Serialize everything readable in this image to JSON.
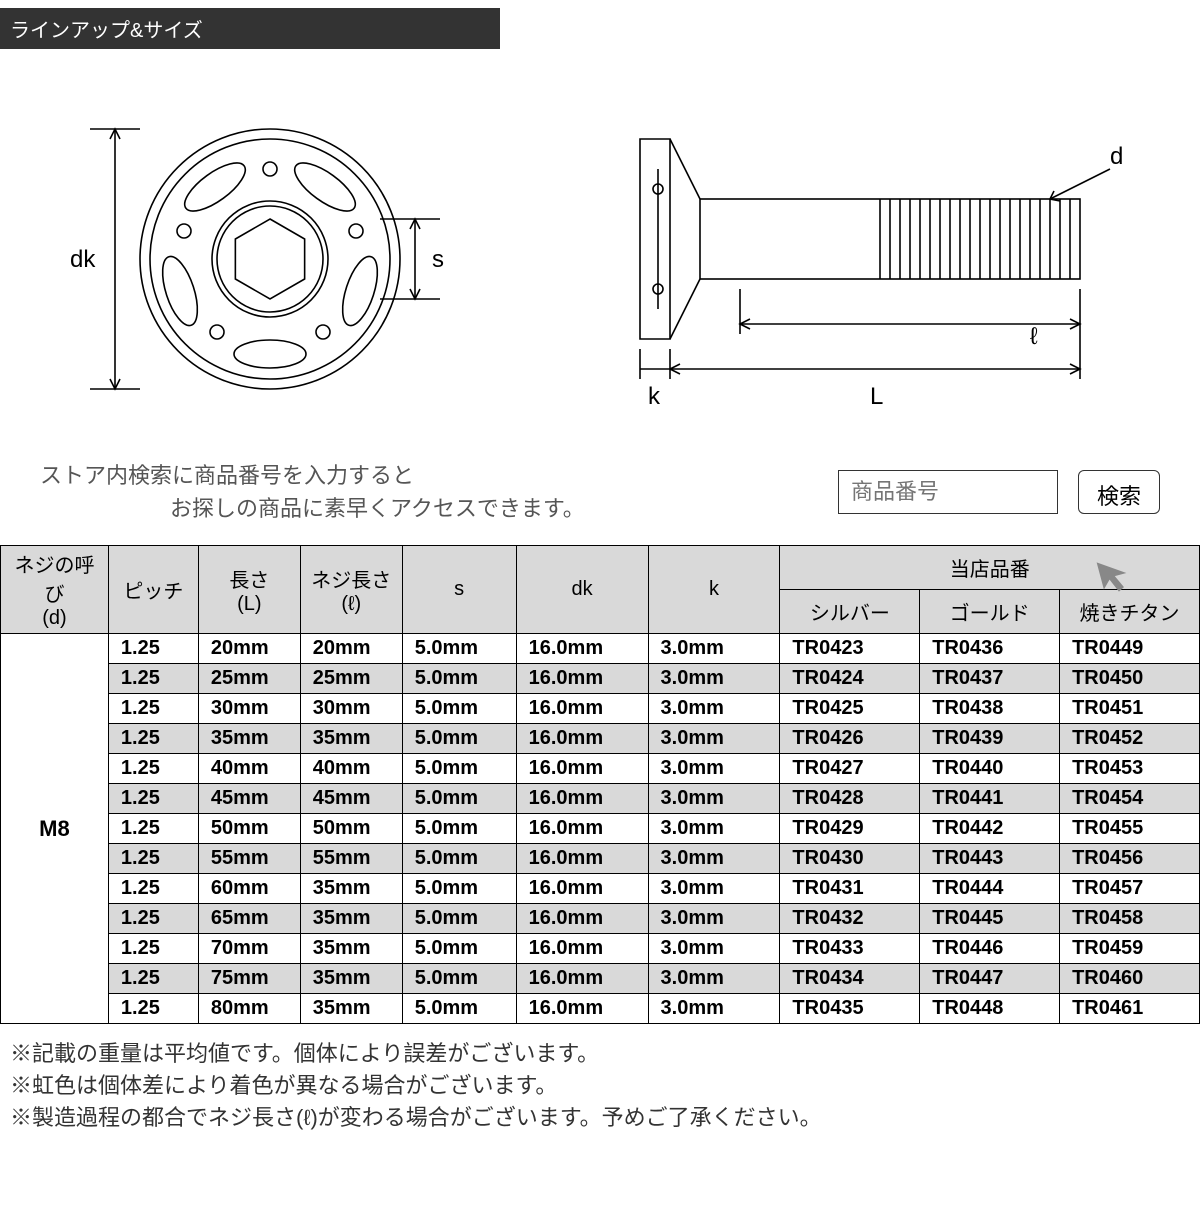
{
  "section_title": "ラインアップ&サイズ",
  "diagram": {
    "front": {
      "dk_label": "dk",
      "s_label": "s"
    },
    "side": {
      "d_label": "d",
      "k_label": "k",
      "L_label": "L",
      "l_label": "ℓ"
    },
    "stroke_color": "#000000",
    "line_width": 1.6
  },
  "search": {
    "hint_line1": "ストア内検索に商品番号を入力すると",
    "hint_line2": "お探しの商品に素早くアクセスできます。",
    "placeholder": "商品番号",
    "button_label": "検索"
  },
  "table": {
    "header_bg": "#d9d9d9",
    "cell_bg": "#ffffff",
    "shaded_bg": "#d9d9d9",
    "border_color": "#000000",
    "headers": {
      "d": "ネジの呼び\n(d)",
      "pitch": "ピッチ",
      "L": "長さ\n(L)",
      "l": "ネジ長さ\n(ℓ)",
      "s": "s",
      "dk": "dk",
      "k": "k",
      "group": "当店品番",
      "silver": "シルバー",
      "gold": "ゴールド",
      "titanium": "焼きチタン"
    },
    "thread_name": "M8",
    "rows": [
      {
        "shaded": false,
        "pitch": "1.25",
        "L": "20mm",
        "l": "20mm",
        "s": "5.0mm",
        "dk": "16.0mm",
        "k": "3.0mm",
        "silver": "TR0423",
        "gold": "TR0436",
        "titanium": "TR0449"
      },
      {
        "shaded": true,
        "pitch": "1.25",
        "L": "25mm",
        "l": "25mm",
        "s": "5.0mm",
        "dk": "16.0mm",
        "k": "3.0mm",
        "silver": "TR0424",
        "gold": "TR0437",
        "titanium": "TR0450"
      },
      {
        "shaded": false,
        "pitch": "1.25",
        "L": "30mm",
        "l": "30mm",
        "s": "5.0mm",
        "dk": "16.0mm",
        "k": "3.0mm",
        "silver": "TR0425",
        "gold": "TR0438",
        "titanium": "TR0451"
      },
      {
        "shaded": true,
        "pitch": "1.25",
        "L": "35mm",
        "l": "35mm",
        "s": "5.0mm",
        "dk": "16.0mm",
        "k": "3.0mm",
        "silver": "TR0426",
        "gold": "TR0439",
        "titanium": "TR0452"
      },
      {
        "shaded": false,
        "pitch": "1.25",
        "L": "40mm",
        "l": "40mm",
        "s": "5.0mm",
        "dk": "16.0mm",
        "k": "3.0mm",
        "silver": "TR0427",
        "gold": "TR0440",
        "titanium": "TR0453"
      },
      {
        "shaded": true,
        "pitch": "1.25",
        "L": "45mm",
        "l": "45mm",
        "s": "5.0mm",
        "dk": "16.0mm",
        "k": "3.0mm",
        "silver": "TR0428",
        "gold": "TR0441",
        "titanium": "TR0454"
      },
      {
        "shaded": false,
        "pitch": "1.25",
        "L": "50mm",
        "l": "50mm",
        "s": "5.0mm",
        "dk": "16.0mm",
        "k": "3.0mm",
        "silver": "TR0429",
        "gold": "TR0442",
        "titanium": "TR0455"
      },
      {
        "shaded": true,
        "pitch": "1.25",
        "L": "55mm",
        "l": "55mm",
        "s": "5.0mm",
        "dk": "16.0mm",
        "k": "3.0mm",
        "silver": "TR0430",
        "gold": "TR0443",
        "titanium": "TR0456"
      },
      {
        "shaded": false,
        "pitch": "1.25",
        "L": "60mm",
        "l": "35mm",
        "s": "5.0mm",
        "dk": "16.0mm",
        "k": "3.0mm",
        "silver": "TR0431",
        "gold": "TR0444",
        "titanium": "TR0457"
      },
      {
        "shaded": true,
        "pitch": "1.25",
        "L": "65mm",
        "l": "35mm",
        "s": "5.0mm",
        "dk": "16.0mm",
        "k": "3.0mm",
        "silver": "TR0432",
        "gold": "TR0445",
        "titanium": "TR0458"
      },
      {
        "shaded": false,
        "pitch": "1.25",
        "L": "70mm",
        "l": "35mm",
        "s": "5.0mm",
        "dk": "16.0mm",
        "k": "3.0mm",
        "silver": "TR0433",
        "gold": "TR0446",
        "titanium": "TR0459"
      },
      {
        "shaded": true,
        "pitch": "1.25",
        "L": "75mm",
        "l": "35mm",
        "s": "5.0mm",
        "dk": "16.0mm",
        "k": "3.0mm",
        "silver": "TR0434",
        "gold": "TR0447",
        "titanium": "TR0460"
      },
      {
        "shaded": false,
        "pitch": "1.25",
        "L": "80mm",
        "l": "35mm",
        "s": "5.0mm",
        "dk": "16.0mm",
        "k": "3.0mm",
        "silver": "TR0435",
        "gold": "TR0448",
        "titanium": "TR0461"
      }
    ]
  },
  "notes": [
    "※記載の重量は平均値です。個体により誤差がございます。",
    "※虹色は個体差により着色が異なる場合がございます。",
    "※製造過程の都合でネジ長さ(ℓ)が変わる場合がございます。予めご了承ください。"
  ]
}
